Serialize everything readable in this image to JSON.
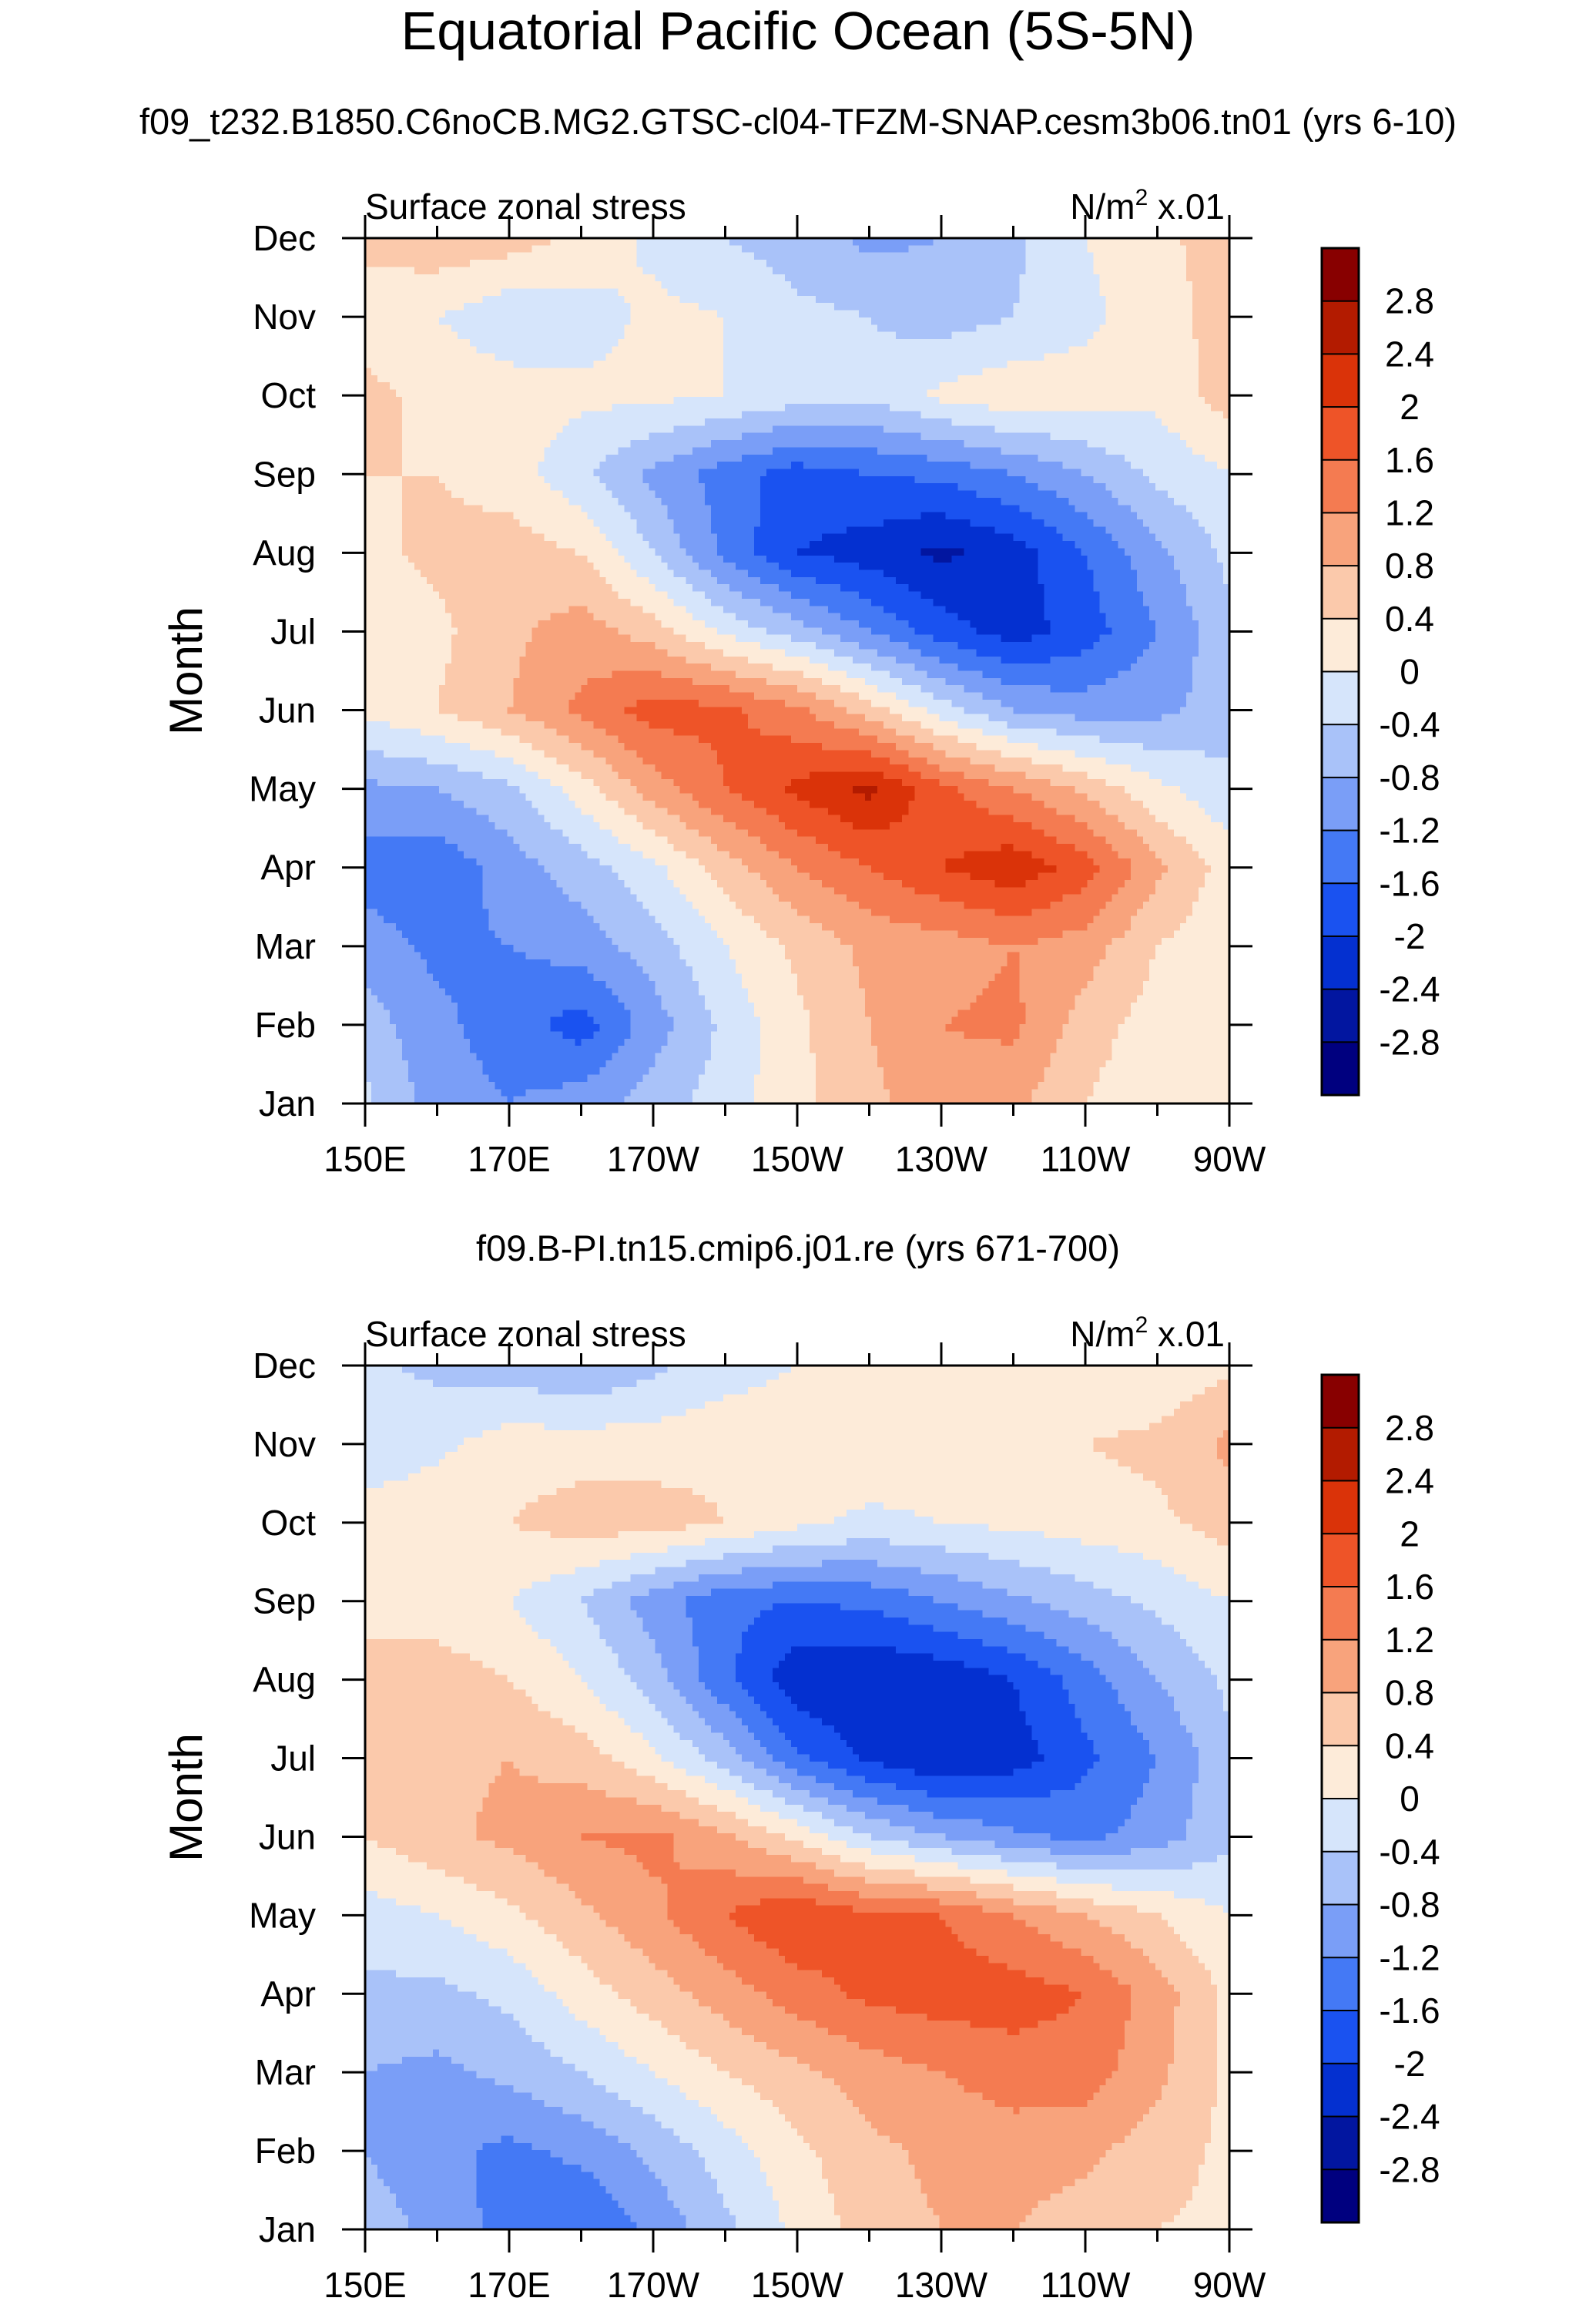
{
  "main_title": "Equatorial Pacific Ocean (5S-5N)",
  "chart_data": [
    {
      "type": "heatmap",
      "title": "f09_t232.B1850.C6noCB.MG2.GTSC-cl04-TFZM-SNAP.cesm3b06.tn01 (yrs 6-10)",
      "left_label": "Surface zonal stress",
      "units_prefix": "N/m",
      "units_sup": "2",
      "units_suffix": " x.01",
      "ylabel": "Month",
      "x_tick_labels": [
        "150E",
        "170E",
        "170W",
        "150W",
        "130W",
        "110W",
        "90W"
      ],
      "x_tick_lon": [
        150,
        170,
        190,
        210,
        230,
        250,
        270
      ],
      "xlim": [
        150,
        270
      ],
      "y_tick_labels": [
        "Jan",
        "Feb",
        "Mar",
        "Apr",
        "May",
        "Jun",
        "Jul",
        "Aug",
        "Sep",
        "Oct",
        "Nov",
        "Dec"
      ],
      "ylim": [
        1,
        12
      ],
      "grid_lon": [
        150,
        160,
        170,
        180,
        190,
        200,
        210,
        220,
        230,
        240,
        250,
        260,
        270
      ],
      "values": [
        [
          -0.3,
          -1.0,
          -1.2,
          -1.0,
          -0.6,
          -0.2,
          0.3,
          0.7,
          1.0,
          0.9,
          0.4,
          0.1,
          0.0
        ],
        [
          -0.6,
          -1.1,
          -1.4,
          -1.8,
          -1.0,
          -0.3,
          0.3,
          0.8,
          1.2,
          1.3,
          0.6,
          0.2,
          0.1
        ],
        [
          -1.0,
          -1.3,
          -1.2,
          -1.0,
          -0.6,
          0.0,
          0.5,
          0.9,
          1.0,
          1.2,
          1.0,
          0.4,
          0.1
        ],
        [
          -1.4,
          -1.5,
          -1.0,
          -0.6,
          -0.1,
          0.6,
          1.2,
          1.6,
          2.0,
          2.3,
          1.8,
          0.9,
          0.2
        ],
        [
          -0.9,
          -0.8,
          -0.5,
          0.2,
          1.0,
          1.6,
          2.1,
          2.5,
          1.7,
          1.2,
          0.7,
          0.1,
          -0.3
        ],
        [
          0.1,
          0.4,
          0.8,
          1.3,
          1.8,
          1.7,
          1.3,
          0.6,
          -0.2,
          -0.8,
          -1.0,
          -0.9,
          -0.6
        ],
        [
          0.1,
          0.3,
          0.7,
          1.0,
          0.6,
          -0.1,
          -0.6,
          -1.2,
          -1.8,
          -2.2,
          -1.8,
          -1.2,
          -0.5
        ],
        [
          0.3,
          0.5,
          0.6,
          0.4,
          -0.4,
          -1.3,
          -2.0,
          -2.2,
          -2.5,
          -2.2,
          -1.6,
          -0.9,
          -0.3
        ],
        [
          0.4,
          0.4,
          0.2,
          -0.3,
          -0.9,
          -1.4,
          -1.8,
          -1.6,
          -1.5,
          -1.2,
          -0.8,
          -0.3,
          0.0
        ],
        [
          0.5,
          0.3,
          0.2,
          0.1,
          0.1,
          0.0,
          -0.2,
          -0.3,
          0.1,
          0.3,
          0.2,
          0.1,
          0.6
        ],
        [
          0.2,
          0.0,
          -0.3,
          -0.2,
          0.1,
          0.0,
          -0.3,
          -0.4,
          -0.6,
          -0.4,
          -0.1,
          0.2,
          0.6
        ],
        [
          0.5,
          0.7,
          0.6,
          0.3,
          -0.1,
          -0.4,
          -0.6,
          -0.9,
          -0.8,
          -0.5,
          0.0,
          0.3,
          0.6
        ]
      ]
    },
    {
      "type": "heatmap",
      "title": "f09.B-PI.tn15.cmip6.j01.re (yrs 671-700)",
      "left_label": "Surface zonal stress",
      "units_prefix": "N/m",
      "units_sup": "2",
      "units_suffix": " x.01",
      "ylabel": "Month",
      "x_tick_labels": [
        "150E",
        "170E",
        "170W",
        "150W",
        "130W",
        "110W",
        "90W"
      ],
      "x_tick_lon": [
        150,
        170,
        190,
        210,
        230,
        250,
        270
      ],
      "xlim": [
        150,
        270
      ],
      "y_tick_labels": [
        "Jan",
        "Feb",
        "Mar",
        "Apr",
        "May",
        "Jun",
        "Jul",
        "Aug",
        "Sep",
        "Oct",
        "Nov",
        "Dec"
      ],
      "ylim": [
        1,
        12
      ],
      "grid_lon": [
        150,
        160,
        170,
        180,
        190,
        200,
        210,
        220,
        230,
        240,
        250,
        260,
        270
      ],
      "values": [
        [
          -0.6,
          -0.9,
          -1.4,
          -1.6,
          -1.1,
          -0.5,
          0.1,
          0.6,
          0.8,
          0.8,
          0.6,
          0.4,
          0.3
        ],
        [
          -0.8,
          -1.1,
          -1.3,
          -1.1,
          -0.7,
          -0.2,
          0.3,
          0.7,
          0.9,
          1.0,
          0.9,
          0.6,
          0.3
        ],
        [
          -0.8,
          -0.9,
          -0.7,
          -0.4,
          0.0,
          0.4,
          0.7,
          1.0,
          1.2,
          1.4,
          1.4,
          0.9,
          0.3
        ],
        [
          -0.5,
          -0.5,
          -0.3,
          0.2,
          0.6,
          1.0,
          1.4,
          1.7,
          1.8,
          1.8,
          1.6,
          1.0,
          0.3
        ],
        [
          -0.2,
          0.0,
          0.3,
          0.7,
          1.1,
          1.6,
          2.0,
          1.7,
          1.6,
          1.2,
          0.8,
          0.4,
          0.0
        ],
        [
          0.4,
          0.7,
          0.9,
          1.2,
          1.3,
          0.9,
          0.3,
          -0.4,
          -0.8,
          -1.1,
          -1.3,
          -1.0,
          -0.5
        ],
        [
          0.5,
          0.7,
          0.8,
          0.6,
          0.1,
          -0.6,
          -1.5,
          -2.1,
          -2.4,
          -2.2,
          -1.7,
          -1.2,
          -0.5
        ],
        [
          0.5,
          0.6,
          0.4,
          0.0,
          -0.6,
          -1.5,
          -2.3,
          -2.4,
          -2.3,
          -2.0,
          -1.4,
          -0.8,
          -0.3
        ],
        [
          0.3,
          0.2,
          0.0,
          -0.4,
          -1.0,
          -1.5,
          -1.6,
          -1.5,
          -1.2,
          -0.9,
          -0.6,
          -0.3,
          0.0
        ],
        [
          0.2,
          0.3,
          0.4,
          0.6,
          0.6,
          0.4,
          0.1,
          -0.1,
          0.0,
          0.1,
          0.2,
          0.3,
          0.6
        ],
        [
          -0.3,
          -0.1,
          0.2,
          0.2,
          0.2,
          0.3,
          0.3,
          0.3,
          0.3,
          0.3,
          0.4,
          0.5,
          0.9
        ],
        [
          -0.3,
          -0.5,
          -0.6,
          -0.8,
          -0.5,
          -0.2,
          0.0,
          0.1,
          0.2,
          0.2,
          0.1,
          0.1,
          0.3
        ]
      ]
    }
  ],
  "colorbar": {
    "levels": [
      -2.8,
      -2.4,
      -2.0,
      -1.6,
      -1.2,
      -0.8,
      -0.4,
      0.0,
      0.4,
      0.8,
      1.2,
      1.6,
      2.0,
      2.4,
      2.8
    ],
    "labels": [
      "2.8",
      "2.4",
      "2",
      "1.6",
      "1.2",
      "0.8",
      "0.4",
      "0",
      "-0.4",
      "-0.8",
      "-1.2",
      "-1.6",
      "-2",
      "-2.4",
      "-2.8"
    ],
    "colors": [
      "#00007f",
      "#0216a0",
      "#0430d0",
      "#1a52f0",
      "#4479f5",
      "#7a9ef7",
      "#a9c2f9",
      "#d6e5fb",
      "#fdebd9",
      "#fbc9ab",
      "#f8a37c",
      "#f47b51",
      "#ee5428",
      "#da3309",
      "#b31b00",
      "#880000"
    ]
  }
}
